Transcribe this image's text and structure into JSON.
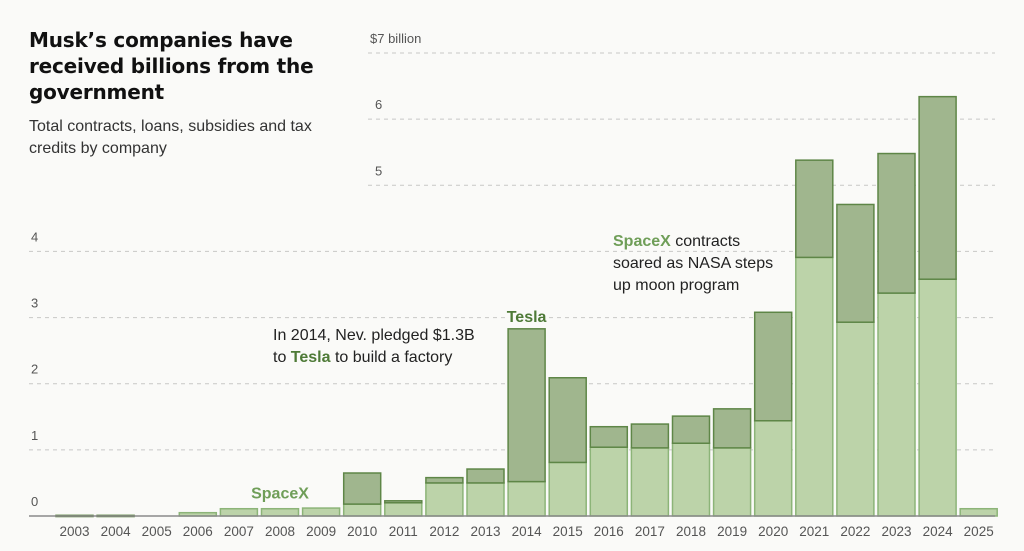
{
  "header": {
    "title": "Musk’s companies have received billions from the government",
    "subtitle": "Total contracts, loans, subsidies and tax credits by company"
  },
  "colors": {
    "spacex": "#bcd3a9",
    "spacex_stroke": "#8cb478",
    "tesla": "#a0b68e",
    "tesla_stroke": "#5e8647",
    "spacex_label": "#6f9e58",
    "tesla_label": "#4e7a37"
  },
  "chart_data": {
    "type": "bar",
    "stacked": true,
    "title": "Musk’s companies have received billions from the government",
    "subtitle": "Total contracts, loans, subsidies and tax credits by company",
    "xlabel": "",
    "ylabel": "",
    "ylim": [
      0,
      7
    ],
    "yticks": [
      {
        "value": 0,
        "label": "0"
      },
      {
        "value": 1,
        "label": "1"
      },
      {
        "value": 2,
        "label": "2"
      },
      {
        "value": 3,
        "label": "3"
      },
      {
        "value": 4,
        "label": "4"
      },
      {
        "value": 5,
        "label": "5"
      },
      {
        "value": 6,
        "label": "6"
      },
      {
        "value": 7,
        "label": "$7 billion"
      }
    ],
    "grid": true,
    "legend": "inline labels",
    "categories": [
      "2003",
      "2004",
      "2005",
      "2006",
      "2007",
      "2008",
      "2009",
      "2010",
      "2011",
      "2012",
      "2013",
      "2014",
      "2015",
      "2016",
      "2017",
      "2018",
      "2019",
      "2020",
      "2021",
      "2022",
      "2023",
      "2024",
      "2025"
    ],
    "series": [
      {
        "name": "SpaceX",
        "values": [
          0,
          0,
          0,
          0.05,
          0.11,
          0.11,
          0.12,
          0.18,
          0.2,
          0.5,
          0.5,
          0.52,
          0.81,
          1.04,
          1.03,
          1.1,
          1.03,
          1.44,
          3.91,
          2.93,
          3.37,
          3.58,
          0.11
        ]
      },
      {
        "name": "Tesla",
        "values": [
          0.01,
          0.01,
          0,
          0,
          0,
          0,
          0,
          0.47,
          0.03,
          0.08,
          0.21,
          2.31,
          1.28,
          0.31,
          0.36,
          0.41,
          0.59,
          1.64,
          1.47,
          1.78,
          2.11,
          2.76,
          0
        ]
      }
    ],
    "series_labels": [
      {
        "text": "SpaceX",
        "series": "SpaceX",
        "near": "2008"
      },
      {
        "text": "Tesla",
        "series": "Tesla",
        "near": "2014"
      }
    ],
    "annotations": [
      {
        "id": "tesla-note",
        "lines": [
          [
            {
              "text": "In 2014, Nev. pledged $1.3B",
              "style": "normal"
            }
          ],
          [
            {
              "text": "to ",
              "style": "normal"
            },
            {
              "text": "Tesla",
              "style": "tesla"
            },
            {
              "text": " to build a factory",
              "style": "normal"
            }
          ]
        ]
      },
      {
        "id": "spacex-note",
        "lines": [
          [
            {
              "text": "SpaceX",
              "style": "spacex"
            },
            {
              "text": " contracts",
              "style": "normal"
            }
          ],
          [
            {
              "text": "soared as NASA steps",
              "style": "normal"
            }
          ],
          [
            {
              "text": "up moon program",
              "style": "normal"
            }
          ]
        ]
      }
    ]
  }
}
